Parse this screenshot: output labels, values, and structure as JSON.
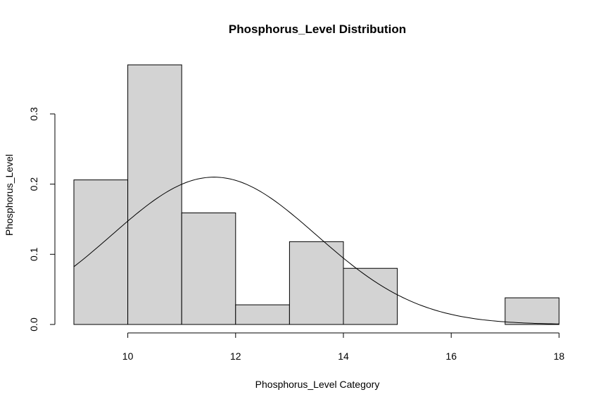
{
  "chart_data": {
    "type": "bar",
    "subtype": "histogram-with-density-curve",
    "title": "Phosphorus_Level Distribution",
    "xlabel": "Phosphorus_Level Category",
    "ylabel": "Phosphorus_Level",
    "xlim": [
      9,
      18
    ],
    "ylim": [
      0,
      0.37
    ],
    "x_ticks": [
      10,
      12,
      14,
      16,
      18
    ],
    "y_ticks": [
      0.0,
      0.1,
      0.2,
      0.3
    ],
    "y_tick_labels": [
      "0.0",
      "0.1",
      "0.2",
      "0.3"
    ],
    "bins": [
      {
        "x0": 9,
        "x1": 10,
        "value": 0.206
      },
      {
        "x0": 10,
        "x1": 11,
        "value": 0.37
      },
      {
        "x0": 11,
        "x1": 12,
        "value": 0.159
      },
      {
        "x0": 12,
        "x1": 13,
        "value": 0.028
      },
      {
        "x0": 13,
        "x1": 14,
        "value": 0.118
      },
      {
        "x0": 14,
        "x1": 15,
        "value": 0.08
      },
      {
        "x0": 15,
        "x1": 16,
        "value": 0.0
      },
      {
        "x0": 16,
        "x1": 17,
        "value": 0.0
      },
      {
        "x0": 17,
        "x1": 18,
        "value": 0.038
      }
    ],
    "density_curve": {
      "distribution": "normal",
      "mean": 11.6,
      "sd": 1.9
    },
    "colors": {
      "bar_fill": "#d3d3d3",
      "bar_stroke": "#000000",
      "curve": "#000000"
    }
  }
}
